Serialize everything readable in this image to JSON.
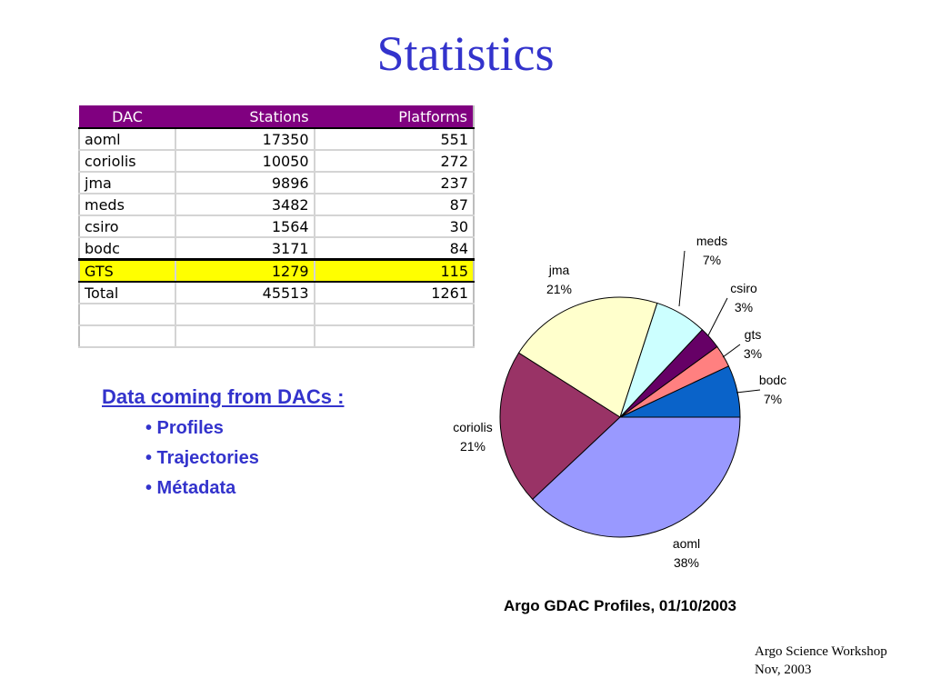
{
  "slide": {
    "title": "Statistics",
    "footer_line1": "Argo Science Workshop",
    "footer_line2": "Nov, 2003"
  },
  "table": {
    "headers": [
      "DAC",
      "Stations",
      "Platforms"
    ],
    "rows": [
      [
        "aoml",
        "17350",
        "551"
      ],
      [
        "coriolis",
        "10050",
        "272"
      ],
      [
        "jma",
        "9896",
        "237"
      ],
      [
        "meds",
        "3482",
        "87"
      ],
      [
        "csiro",
        "1564",
        "30"
      ],
      [
        "bodc",
        "3171",
        "84"
      ],
      [
        "GTS",
        "1279",
        "115"
      ],
      [
        "Total",
        "45513",
        "1261"
      ],
      [
        "",
        "",
        ""
      ],
      [
        "",
        "",
        ""
      ]
    ],
    "highlight_row": "GTS",
    "highlight_color": "#ffff00",
    "header_color": "#800080"
  },
  "bullets": {
    "heading": "Data coming from DACs :",
    "items": [
      "• Profiles",
      "• Trajectories",
      "• Métadata"
    ],
    "color": "#3333cc"
  },
  "chart_data": {
    "type": "pie",
    "title": "Argo GDAC Profiles, 01/10/2003",
    "slices": [
      {
        "name": "bodc",
        "value": 7,
        "label": "7%",
        "color": "#0a63c9"
      },
      {
        "name": "gts",
        "value": 3,
        "label": "3%",
        "color": "#ff8080"
      },
      {
        "name": "csiro",
        "value": 3,
        "label": "3%",
        "color": "#660066"
      },
      {
        "name": "meds",
        "value": 7,
        "label": "7%",
        "color": "#ccffff"
      },
      {
        "name": "jma",
        "value": 21,
        "label": "21%",
        "color": "#ffffcc"
      },
      {
        "name": "coriolis",
        "value": 21,
        "label": "21%",
        "color": "#993366"
      },
      {
        "name": "aoml",
        "value": 38,
        "label": "38%",
        "color": "#9999ff"
      }
    ]
  }
}
